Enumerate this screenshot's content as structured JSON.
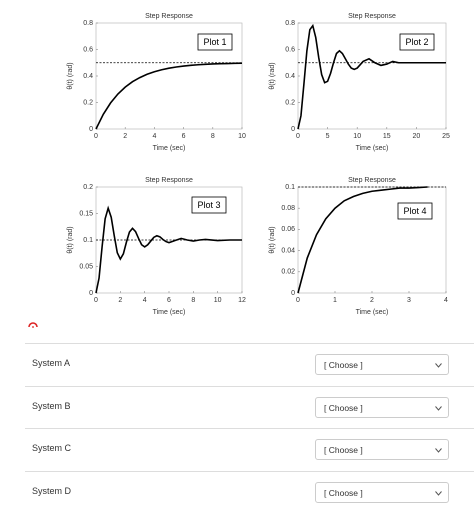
{
  "chart_data": [
    {
      "type": "line",
      "title": "Step Response",
      "xlabel": "Time (sec)",
      "ylabel": "θ(t) (rad)",
      "label": "Plot 1",
      "reference": 0.5,
      "x": [
        0,
        0.5,
        1,
        1.5,
        2,
        2.5,
        3,
        3.5,
        4,
        4.5,
        5,
        5.5,
        6,
        6.5,
        7,
        7.5,
        8,
        8.5,
        9,
        9.5,
        10
      ],
      "series": [
        {
          "color": "#000000",
          "values": [
            0,
            0.111,
            0.197,
            0.264,
            0.316,
            0.357,
            0.388,
            0.413,
            0.432,
            0.447,
            0.459,
            0.468,
            0.475,
            0.481,
            0.485,
            0.488,
            0.491,
            0.493,
            0.494,
            0.496,
            0.497
          ]
        }
      ],
      "xlim": [
        0,
        10
      ],
      "xticks": [
        0,
        2,
        4,
        6,
        8,
        10
      ],
      "ylim": [
        0,
        0.8
      ],
      "yticks": [
        0,
        0.2,
        0.4,
        0.6,
        0.8
      ]
    },
    {
      "type": "line",
      "title": "Step Response",
      "xlabel": "Time (sec)",
      "ylabel": "θ(t) (rad)",
      "label": "Plot 2",
      "reference": 0.5,
      "x": [
        0,
        0.5,
        1,
        1.5,
        2,
        2.5,
        3,
        3.5,
        4,
        4.5,
        5,
        5.5,
        6,
        6.5,
        7,
        7.5,
        8,
        8.5,
        9,
        9.5,
        10,
        11,
        12,
        13,
        14,
        15,
        16,
        17,
        18,
        19,
        20,
        21,
        22,
        23,
        24,
        25
      ],
      "series": [
        {
          "color": "#000000",
          "values": [
            0,
            0.1,
            0.34,
            0.59,
            0.75,
            0.78,
            0.69,
            0.54,
            0.41,
            0.35,
            0.36,
            0.42,
            0.5,
            0.57,
            0.59,
            0.57,
            0.53,
            0.49,
            0.46,
            0.45,
            0.46,
            0.51,
            0.53,
            0.5,
            0.48,
            0.49,
            0.51,
            0.5,
            0.5,
            0.5,
            0.5,
            0.5,
            0.5,
            0.5,
            0.5,
            0.5
          ]
        }
      ],
      "xlim": [
        0,
        25
      ],
      "xticks": [
        0,
        5,
        10,
        15,
        20,
        25
      ],
      "ylim": [
        0,
        0.8
      ],
      "yticks": [
        0,
        0.2,
        0.4,
        0.6,
        0.8
      ]
    },
    {
      "type": "line",
      "title": "Step Response",
      "xlabel": "Time (sec)",
      "ylabel": "θ(t) (rad)",
      "label": "Plot 3",
      "reference": 0.1,
      "x": [
        0,
        0.25,
        0.5,
        0.75,
        1,
        1.25,
        1.5,
        1.75,
        2,
        2.25,
        2.5,
        2.75,
        3,
        3.25,
        3.5,
        3.75,
        4,
        4.25,
        4.5,
        4.75,
        5,
        5.25,
        5.5,
        5.75,
        6,
        6.5,
        7,
        7.5,
        8,
        8.5,
        9,
        10,
        11,
        12
      ],
      "series": [
        {
          "color": "#000000",
          "values": [
            0,
            0.028,
            0.087,
            0.14,
            0.16,
            0.143,
            0.108,
            0.076,
            0.064,
            0.074,
            0.096,
            0.115,
            0.122,
            0.116,
            0.103,
            0.091,
            0.087,
            0.091,
            0.098,
            0.105,
            0.108,
            0.106,
            0.101,
            0.097,
            0.095,
            0.099,
            0.103,
            0.1,
            0.098,
            0.1,
            0.101,
            0.099,
            0.1,
            0.1
          ]
        }
      ],
      "xlim": [
        0,
        12
      ],
      "xticks": [
        0,
        2,
        4,
        6,
        8,
        10,
        12
      ],
      "ylim": [
        0,
        0.2
      ],
      "yticks": [
        0,
        0.05,
        0.1,
        0.15,
        0.2
      ]
    },
    {
      "type": "line",
      "title": "Step Response",
      "xlabel": "Time (sec)",
      "ylabel": "θ(t) (rad)",
      "label": "Plot 4",
      "reference": 0.1,
      "x": [
        0,
        0.25,
        0.5,
        0.75,
        1,
        1.25,
        1.5,
        1.75,
        2,
        2.25,
        2.5,
        2.75,
        3,
        3.25,
        3.5
      ],
      "series": [
        {
          "color": "#000000",
          "values": [
            0,
            0.033,
            0.055,
            0.07,
            0.08,
            0.087,
            0.091,
            0.094,
            0.096,
            0.097,
            0.098,
            0.099,
            0.099,
            0.0995,
            0.1
          ]
        }
      ],
      "xlim": [
        0,
        4
      ],
      "xticks": [
        0,
        1,
        2,
        3,
        4
      ],
      "ylim": [
        0,
        0.1
      ],
      "yticks": [
        0,
        0.02,
        0.04,
        0.06,
        0.08,
        0.1
      ]
    }
  ],
  "questions": [
    {
      "label": "System A",
      "placeholder": "[ Choose ]"
    },
    {
      "label": "System B",
      "placeholder": "[ Choose ]"
    },
    {
      "label": "System C",
      "placeholder": "[ Choose ]"
    },
    {
      "label": "System D",
      "placeholder": "[ Choose ]"
    }
  ]
}
